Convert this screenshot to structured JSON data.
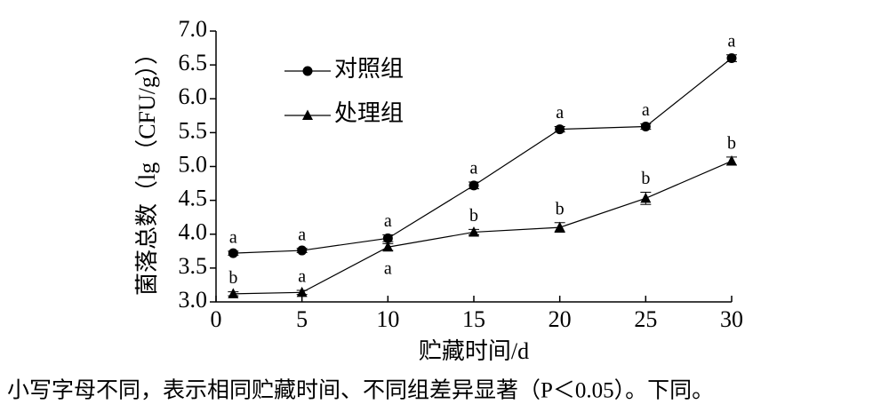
{
  "chart_data": {
    "type": "line",
    "xlabel": "贮藏时间/d",
    "ylabel": "菌落总数（lg（CFU/g））",
    "x": [
      1,
      5,
      10,
      15,
      20,
      25,
      30
    ],
    "series": [
      {
        "name": "对照组",
        "color": "#000000",
        "marker": "circle",
        "values": [
          3.72,
          3.76,
          3.94,
          4.72,
          5.55,
          5.59,
          6.6
        ],
        "errors": [
          0.03,
          0.03,
          0.05,
          0.05,
          0.04,
          0.04,
          0.05
        ],
        "letters": [
          "a",
          "a",
          "a",
          "a",
          "a",
          "a",
          "a"
        ]
      },
      {
        "name": "处理组",
        "color": "#000000",
        "marker": "triangle",
        "values": [
          3.12,
          3.14,
          3.81,
          4.03,
          4.1,
          4.53,
          5.08
        ],
        "errors": [
          0.03,
          0.03,
          0.05,
          0.04,
          0.07,
          0.09,
          0.06
        ],
        "letters": [
          "b",
          "a",
          "a",
          "b",
          "b",
          "b",
          "b"
        ]
      }
    ],
    "xlim": [
      0,
      30
    ],
    "xticks": [
      0,
      5,
      10,
      15,
      20,
      25,
      30
    ],
    "ylim": [
      3,
      7
    ],
    "yticks": [
      {
        "value": 3,
        "label": "3.0"
      },
      {
        "value": 3.5,
        "label": "3.5"
      },
      {
        "value": 4,
        "label": "4.0"
      },
      {
        "value": 4.5,
        "label": "4.5"
      },
      {
        "value": 5,
        "label": "5.0"
      },
      {
        "value": 5.5,
        "label": "5.5"
      },
      {
        "value": 6,
        "label": "6.0"
      },
      {
        "value": 6.5,
        "label": "6.5"
      },
      {
        "value": 7,
        "label": "7.0"
      }
    ],
    "legend": "upper left",
    "grid": false
  },
  "caption": "小写字母不同，表示相同贮藏时间、不同组差异显著（P＜0.05）。下同。"
}
